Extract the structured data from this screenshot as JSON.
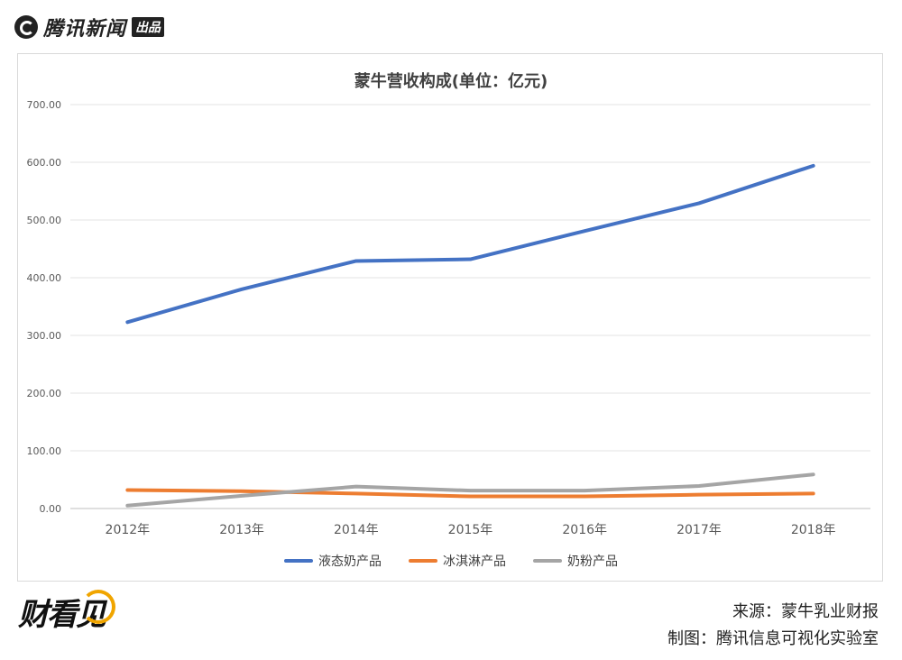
{
  "header": {
    "brand": "腾讯新闻",
    "brand_tag": "出品"
  },
  "footer": {
    "brand": "财看见",
    "source": "来源：蒙牛乳业财报",
    "credit": "制图：腾讯信息可视化实验室"
  },
  "colors": {
    "liquid_milk": "#4472c4",
    "ice_cream": "#ed7d31",
    "milk_powder": "#a5a5a5"
  },
  "chart_data": {
    "type": "line",
    "title": "蒙牛营收构成(单位：亿元)",
    "xlabel": "",
    "ylabel": "",
    "categories": [
      "2012年",
      "2013年",
      "2014年",
      "2015年",
      "2016年",
      "2017年",
      "2018年"
    ],
    "ylim": [
      0,
      700
    ],
    "yticks": [
      "700.00",
      "600.00",
      "500.00",
      "400.00",
      "300.00",
      "200.00",
      "100.00",
      "0.00"
    ],
    "ytick_values": [
      700,
      600,
      500,
      400,
      300,
      200,
      100,
      0
    ],
    "grid": true,
    "legend_position": "bottom",
    "series": [
      {
        "name": "液态奶产品",
        "color": "#4472c4",
        "values": [
          323,
          380,
          429,
          432,
          481,
          529,
          594
        ]
      },
      {
        "name": "冰淇淋产品",
        "color": "#ed7d31",
        "values": [
          32,
          30,
          26,
          21,
          21,
          24,
          26
        ]
      },
      {
        "name": "奶粉产品",
        "color": "#a5a5a5",
        "values": [
          5,
          22,
          38,
          31,
          31,
          39,
          59
        ]
      }
    ]
  }
}
